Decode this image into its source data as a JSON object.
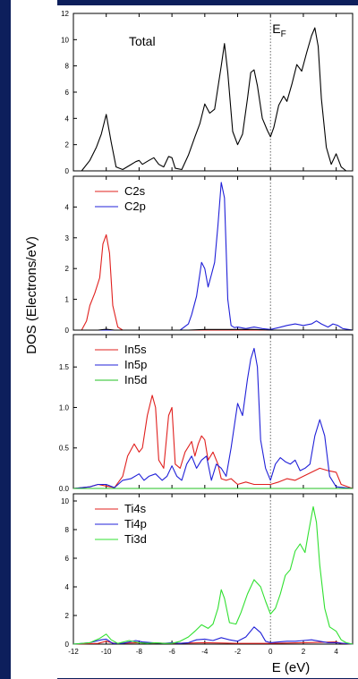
{
  "figure": {
    "ylabel": "DOS (Electrons/eV)",
    "xlabel": "E (eV)",
    "fermi_label_main": "E",
    "fermi_label_sub": "F"
  },
  "chart_data": [
    {
      "type": "line",
      "title": "",
      "ylim": [
        0,
        12
      ],
      "yticks": [
        0,
        2,
        4,
        6,
        8,
        10,
        12
      ],
      "xlim": [
        -12,
        5
      ],
      "annotation": "Total",
      "series": [
        {
          "name": "",
          "color": "#000000",
          "x": [
            -12,
            -11.5,
            -11,
            -10.6,
            -10.3,
            -10,
            -9.7,
            -9.4,
            -9,
            -8.6,
            -8.2,
            -8,
            -7.8,
            -7.4,
            -7.1,
            -6.8,
            -6.5,
            -6.2,
            -6,
            -5.8,
            -5.4,
            -5,
            -4.6,
            -4.3,
            -4,
            -3.7,
            -3.4,
            -3,
            -2.8,
            -2.6,
            -2.3,
            -2,
            -1.7,
            -1.4,
            -1.2,
            -1,
            -0.8,
            -0.5,
            -0.2,
            0,
            0.2,
            0.5,
            0.8,
            1,
            1.3,
            1.6,
            1.9,
            2.2,
            2.5,
            2.7,
            2.9,
            3.1,
            3.4,
            3.7,
            4,
            4.3,
            4.6,
            5
          ],
          "y": [
            0,
            0,
            0.8,
            1.8,
            2.8,
            4.3,
            2.2,
            0.3,
            0.1,
            0.4,
            0.7,
            0.8,
            0.5,
            0.8,
            1,
            0.5,
            0.3,
            1.1,
            1,
            0.2,
            0.1,
            1.2,
            2.6,
            3.6,
            5.1,
            4.4,
            4.7,
            8,
            9.7,
            7.5,
            3,
            2,
            2.8,
            5.5,
            7.5,
            7.7,
            6.5,
            4,
            3.1,
            2.6,
            3.3,
            5,
            5.7,
            5.3,
            6.6,
            8.1,
            7.6,
            9,
            10.3,
            10.9,
            9.5,
            5.5,
            1.8,
            0.5,
            1.3,
            0.3,
            0,
            0
          ]
        }
      ]
    },
    {
      "type": "line",
      "title": "",
      "ylim": [
        0,
        5
      ],
      "yticks": [
        0,
        1,
        2,
        3,
        4
      ],
      "xlim": [
        -12,
        5
      ],
      "legend_position": "top-left",
      "series": [
        {
          "name": "C2s",
          "color": "#e0201e",
          "x": [
            -12,
            -11.5,
            -11.2,
            -11,
            -10.7,
            -10.4,
            -10.2,
            -10,
            -9.8,
            -9.6,
            -9.3,
            -9,
            -5,
            5
          ],
          "y": [
            0,
            0,
            0.3,
            0.8,
            1.2,
            1.7,
            2.8,
            3.1,
            2.5,
            0.8,
            0.1,
            0,
            0,
            0
          ]
        },
        {
          "name": "C2p",
          "color": "#2020d8",
          "x": [
            -12,
            -9,
            -5.5,
            -5,
            -4.8,
            -4.5,
            -4.2,
            -4,
            -3.8,
            -3.6,
            -3.4,
            -3.2,
            -3,
            -2.8,
            -2.6,
            -2.4,
            -2.2,
            -2,
            -1.5,
            -1,
            -0.5,
            0,
            0.5,
            1,
            1.5,
            2,
            2.5,
            2.8,
            3.1,
            3.5,
            3.8,
            4.1,
            4.4,
            5
          ],
          "y": [
            0,
            0,
            0,
            0.2,
            0.5,
            1.1,
            2.2,
            2,
            1.4,
            1.8,
            2.2,
            3.4,
            4.8,
            4.3,
            1,
            0.15,
            0.08,
            0.1,
            0.05,
            0.1,
            0.05,
            0.02,
            0.08,
            0.15,
            0.2,
            0.15,
            0.2,
            0.3,
            0.2,
            0.1,
            0.2,
            0.15,
            0.05,
            0
          ]
        },
        {
          "name": "",
          "color": "#000000",
          "x": [
            -12,
            -10.5,
            -10,
            -9.5,
            -5,
            -4,
            -1,
            0,
            5
          ],
          "y": [
            0,
            0,
            0.03,
            0,
            0,
            0.02,
            0.02,
            0,
            0
          ]
        }
      ]
    },
    {
      "type": "line",
      "title": "",
      "ylim": [
        0,
        1.9
      ],
      "yticks": [
        0,
        0.5,
        1.0,
        1.5
      ],
      "xlim": [
        -12,
        5
      ],
      "legend_position": "top-left",
      "series": [
        {
          "name": "In5s",
          "color": "#e0201e",
          "x": [
            -12,
            -11,
            -10.5,
            -10,
            -9.5,
            -9,
            -8.7,
            -8.3,
            -8,
            -7.8,
            -7.5,
            -7.2,
            -7,
            -6.8,
            -6.5,
            -6.2,
            -6,
            -5.8,
            -5.5,
            -5.2,
            -4.8,
            -4.6,
            -4.4,
            -4.2,
            -4,
            -3.8,
            -3.5,
            -3.2,
            -3,
            -2.7,
            -2.4,
            -2,
            -1.5,
            -1,
            -0.5,
            0,
            0.5,
            1,
            1.5,
            2,
            2.5,
            3,
            3.5,
            4,
            4.3,
            5
          ],
          "y": [
            0,
            0.02,
            0.05,
            0.03,
            0.01,
            0.15,
            0.4,
            0.55,
            0.45,
            0.5,
            0.9,
            1.15,
            1,
            0.35,
            0.25,
            0.9,
            1,
            0.3,
            0.25,
            0.45,
            0.58,
            0.4,
            0.55,
            0.65,
            0.6,
            0.35,
            0.45,
            0.3,
            0.12,
            0.1,
            0.12,
            0.05,
            0.08,
            0.05,
            0.05,
            0.05,
            0.08,
            0.12,
            0.1,
            0.15,
            0.2,
            0.25,
            0.22,
            0.2,
            0.05,
            0
          ]
        },
        {
          "name": "In5p",
          "color": "#2020d8",
          "x": [
            -12,
            -11,
            -10.5,
            -10,
            -9.5,
            -9,
            -8.5,
            -8,
            -7.7,
            -7.4,
            -7,
            -6.6,
            -6.3,
            -6,
            -5.7,
            -5.4,
            -5.1,
            -4.8,
            -4.5,
            -4.2,
            -3.9,
            -3.6,
            -3.3,
            -3,
            -2.7,
            -2.4,
            -2,
            -1.7,
            -1.4,
            -1.2,
            -1,
            -0.8,
            -0.6,
            -0.3,
            0,
            0.3,
            0.6,
            0.9,
            1.2,
            1.5,
            1.8,
            2.1,
            2.4,
            2.7,
            3,
            3.3,
            3.6,
            4,
            5
          ],
          "y": [
            0,
            0.02,
            0.05,
            0.05,
            0.01,
            0.1,
            0.12,
            0.18,
            0.1,
            0.15,
            0.18,
            0.1,
            0.15,
            0.28,
            0.15,
            0.1,
            0.3,
            0.4,
            0.25,
            0.35,
            0.4,
            0.1,
            0.3,
            0.25,
            0.15,
            0.5,
            1.05,
            0.9,
            1.35,
            1.6,
            1.73,
            1.5,
            0.6,
            0.25,
            0.1,
            0.3,
            0.38,
            0.33,
            0.3,
            0.35,
            0.22,
            0.25,
            0.3,
            0.65,
            0.85,
            0.65,
            0.15,
            0.02,
            0
          ]
        },
        {
          "name": "In5d",
          "color": "#20c020",
          "x": [
            -12,
            5
          ],
          "y": [
            0,
            0
          ]
        }
      ]
    },
    {
      "type": "line",
      "title": "",
      "ylim": [
        0,
        10.5
      ],
      "yticks": [
        0,
        2,
        4,
        6,
        8,
        10
      ],
      "xlim": [
        -12,
        5
      ],
      "xticks": [
        -12,
        -10,
        -8,
        -6,
        -4,
        -2,
        0,
        2,
        4
      ],
      "legend_position": "top-left",
      "series": [
        {
          "name": "Ti4s",
          "color": "#e0201e",
          "x": [
            -12,
            -10.5,
            -10,
            -9.5,
            -8,
            -6,
            -4,
            -2,
            0,
            2,
            4,
            4.3,
            5
          ],
          "y": [
            0,
            0.05,
            0.2,
            0.05,
            0.1,
            0.05,
            0.1,
            0.05,
            0.05,
            0.1,
            0.15,
            0.05,
            0
          ]
        },
        {
          "name": "Ti4p",
          "color": "#2020d8",
          "x": [
            -12,
            -11,
            -10.3,
            -10,
            -9.6,
            -9,
            -8.2,
            -7.8,
            -7.2,
            -6.5,
            -6,
            -5.5,
            -5,
            -4.5,
            -4,
            -3.5,
            -3,
            -2.5,
            -2,
            -1.5,
            -1,
            -0.6,
            -0.3,
            0,
            0.5,
            1,
            1.5,
            2,
            2.5,
            3,
            3.5,
            4,
            4.5,
            5
          ],
          "y": [
            0,
            0.1,
            0.3,
            0.35,
            0.05,
            0.05,
            0.25,
            0.15,
            0.1,
            0.05,
            0.1,
            0.05,
            0.1,
            0.3,
            0.35,
            0.25,
            0.45,
            0.3,
            0.2,
            0.5,
            1.2,
            0.8,
            0.2,
            0.1,
            0.15,
            0.2,
            0.2,
            0.25,
            0.3,
            0.2,
            0.1,
            0.1,
            0.05,
            0
          ]
        },
        {
          "name": "Ti3d",
          "color": "#30e030",
          "x": [
            -12,
            -11,
            -10.4,
            -10,
            -9.7,
            -9.3,
            -8.6,
            -8,
            -7.5,
            -7,
            -6.5,
            -6,
            -5.5,
            -5,
            -4.6,
            -4.2,
            -3.8,
            -3.5,
            -3.2,
            -3,
            -2.8,
            -2.5,
            -2.1,
            -1.8,
            -1.4,
            -1,
            -0.6,
            -0.3,
            0,
            0.3,
            0.6,
            0.9,
            1.2,
            1.5,
            1.8,
            2.1,
            2.3,
            2.6,
            2.8,
            3,
            3.3,
            3.6,
            4,
            4.3,
            4.6,
            5
          ],
          "y": [
            0,
            0.1,
            0.4,
            0.7,
            0.3,
            0.05,
            0.25,
            0.1,
            0.05,
            0.1,
            0.05,
            0.05,
            0.2,
            0.5,
            0.9,
            1.35,
            1.1,
            1.4,
            2.5,
            3.8,
            3.2,
            1.5,
            1.4,
            2.2,
            3.5,
            4.5,
            4,
            3,
            2.1,
            2.5,
            3.5,
            4.8,
            5.2,
            6.5,
            7,
            6.4,
            7.7,
            9.6,
            8.5,
            5.5,
            2.5,
            1.2,
            0.9,
            0.3,
            0.1,
            0
          ]
        }
      ]
    }
  ]
}
